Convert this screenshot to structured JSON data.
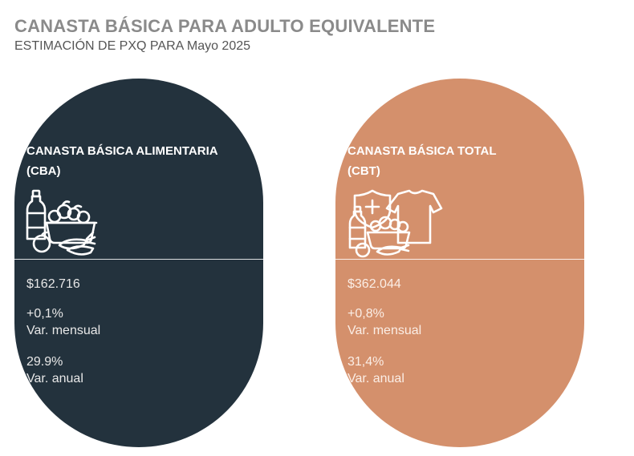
{
  "header": {
    "title": "CANASTA BÁSICA PARA ADULTO EQUIVALENTE",
    "subtitle": "ESTIMACIÓN DE PXQ PARA Mayo 2025"
  },
  "cards": [
    {
      "title_line1": "CANASTA BÁSICA ALIMENTARIA",
      "title_line2": "(CBA)",
      "icon": "grocery-basket-icon",
      "value": "$162.716",
      "monthly_change": "+0,1%",
      "monthly_label": "Var. mensual",
      "annual_change": "29.9%",
      "annual_label": "Var. anual",
      "color": "#23323d"
    },
    {
      "title_line1": "CANASTA BÁSICA TOTAL",
      "title_line2": "(CBT)",
      "icon": "grocery-health-clothing-icon",
      "value": "$362.044",
      "monthly_change": "+0,8%",
      "monthly_label": "Var. mensual",
      "annual_change": "31,4%",
      "annual_label": "Var. anual",
      "color": "#d4906c"
    }
  ],
  "colors": {
    "title": "#8a8a8a",
    "subtitle": "#555555",
    "text": "#ffffff"
  }
}
